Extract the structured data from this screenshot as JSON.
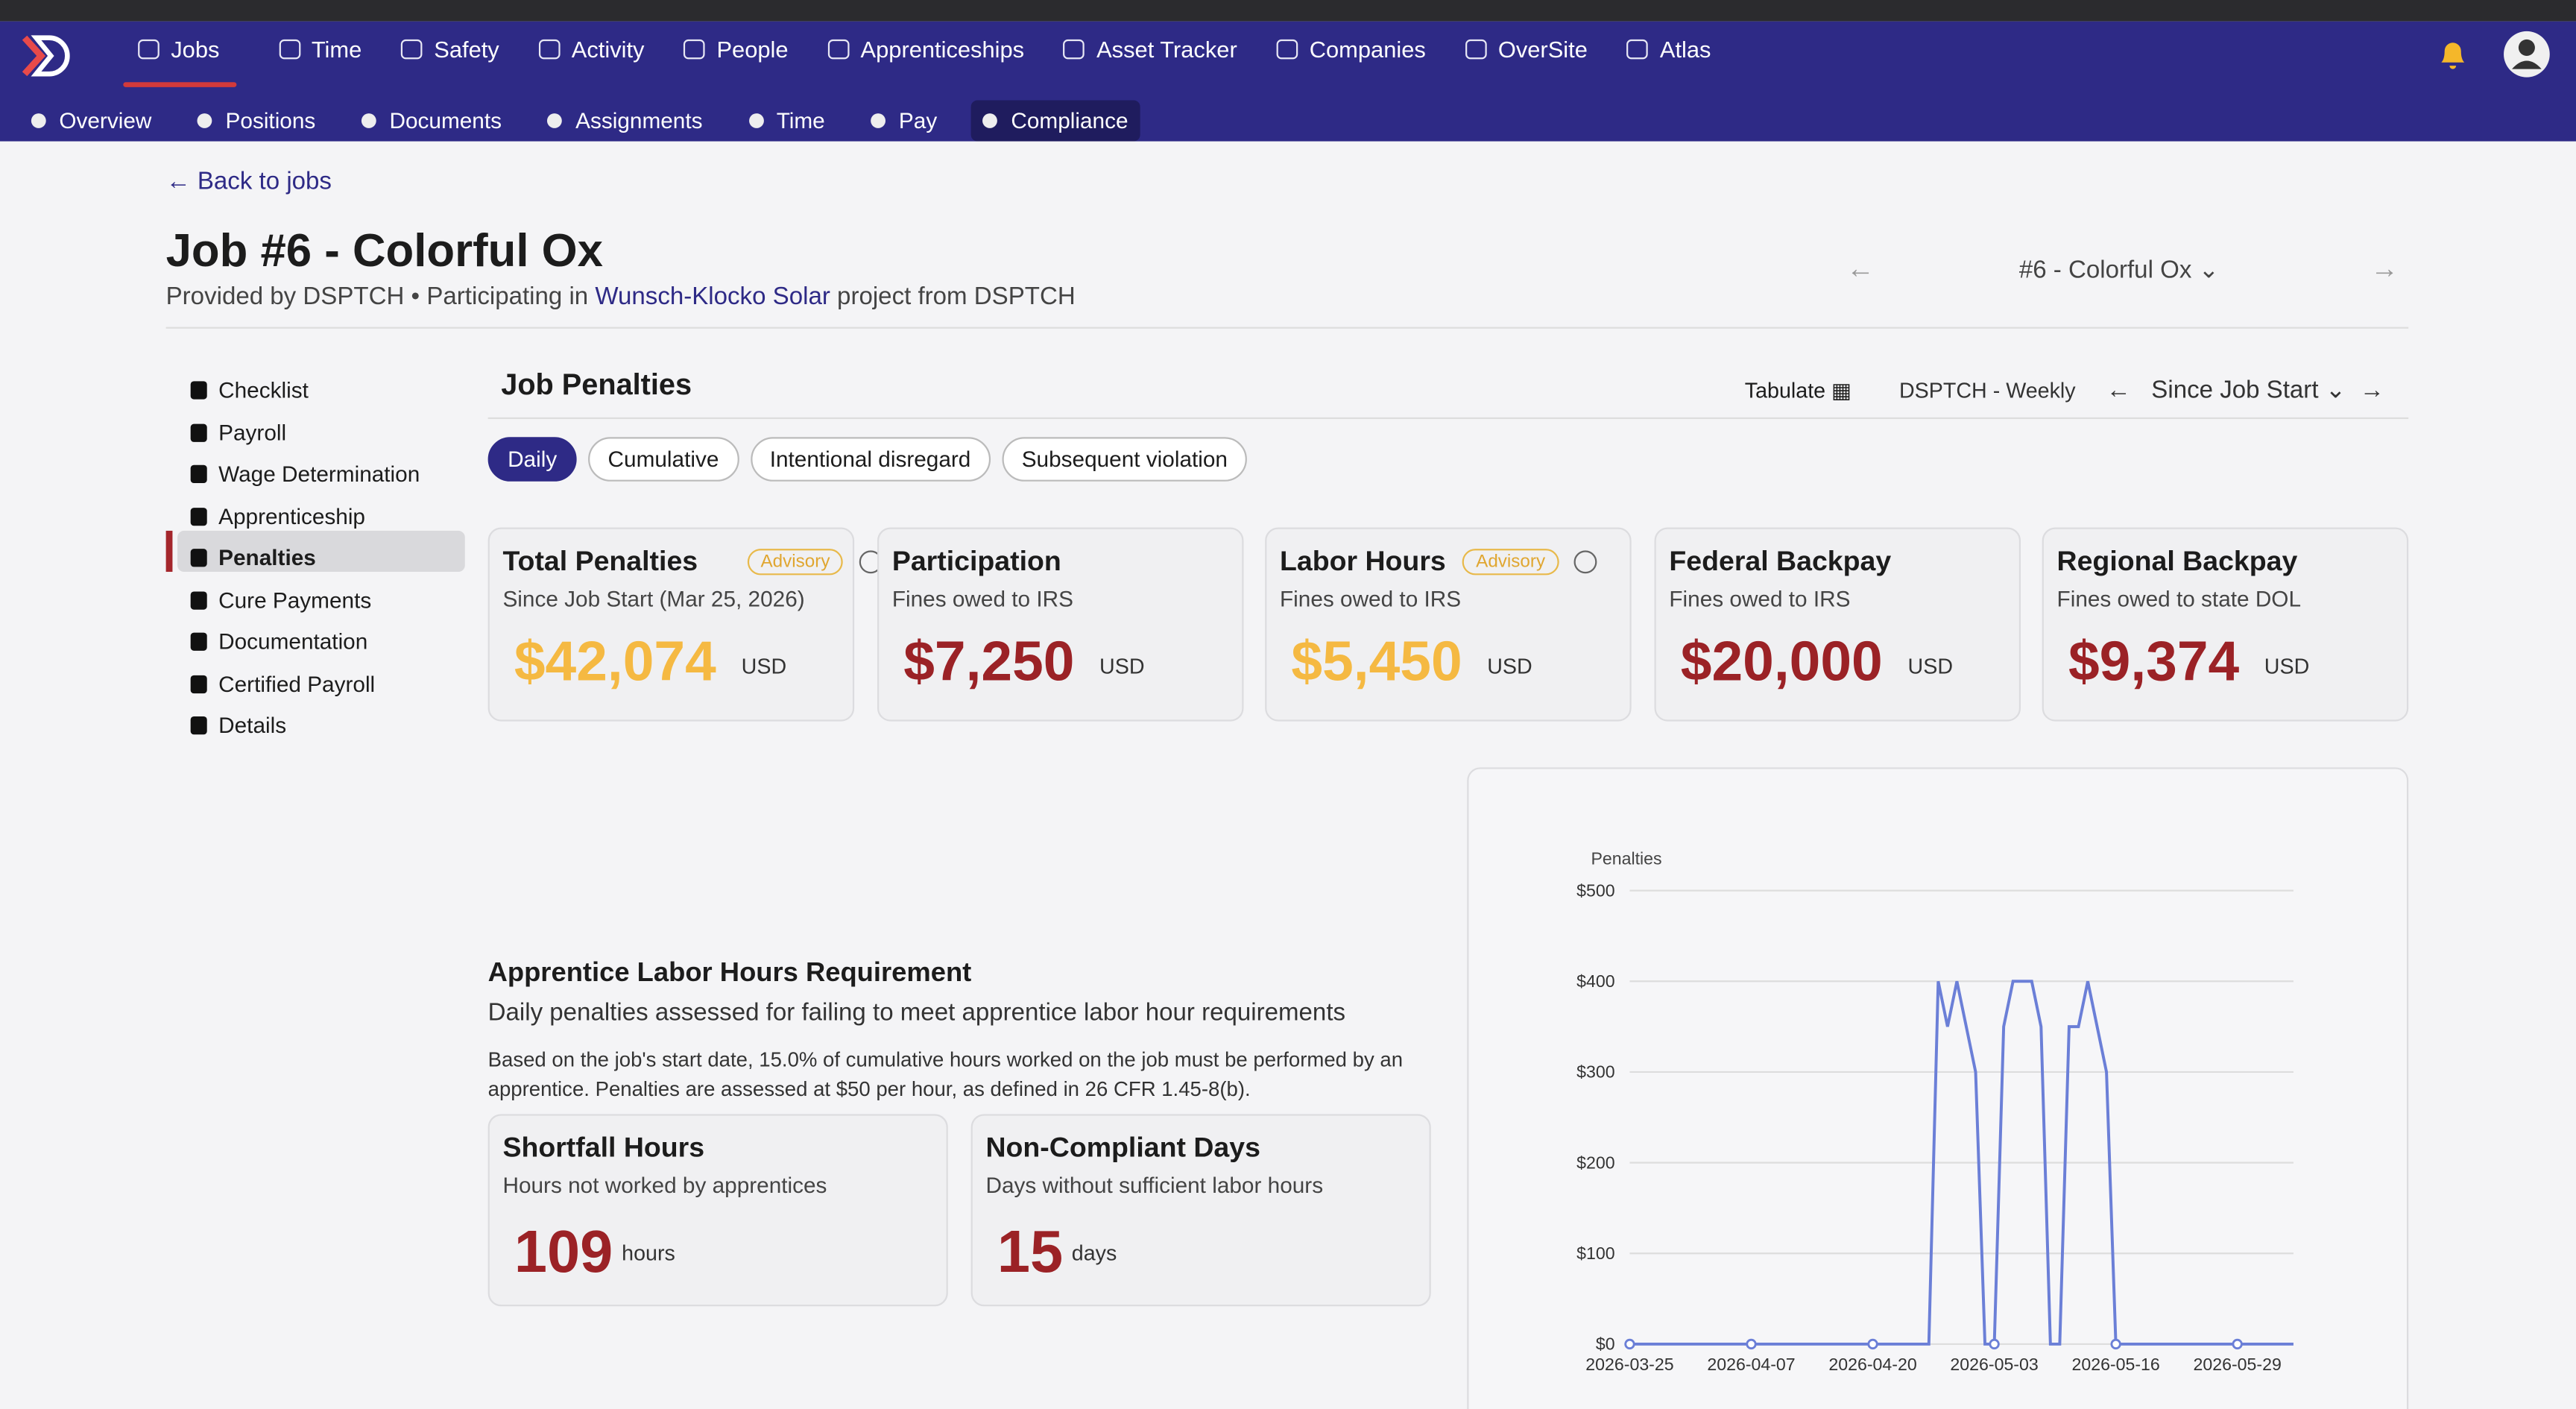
{
  "nav": {
    "items": [
      "Jobs",
      "Time",
      "Safety",
      "Activity",
      "People",
      "Apprenticeships",
      "Asset Tracker",
      "Companies",
      "OverSite",
      "Atlas"
    ]
  },
  "subnav": {
    "items": [
      "Overview",
      "Positions",
      "Documents",
      "Assignments",
      "Time",
      "Pay",
      "Compliance"
    ]
  },
  "header": {
    "back": "Back to jobs",
    "title": "Job #6 - Colorful Ox",
    "provided": "Provided by DSPTCH",
    "separator": "•",
    "participating": "Participating in",
    "project_link": "Wunsch-Klocko Solar",
    "project_from": "project from DSPTCH",
    "job_selector": "#6 - Colorful Ox"
  },
  "sidebar": {
    "items": [
      "Checklist",
      "Payroll",
      "Wage Determination",
      "Apprenticeship",
      "Penalties",
      "Cure Payments",
      "Documentation",
      "Certified Payroll",
      "Details"
    ]
  },
  "penalties": {
    "title": "Job Penalties",
    "tabulate": "Tabulate",
    "schedule": "DSPTCH - Weekly",
    "range": "Since Job Start",
    "tabs": [
      "Daily",
      "Cumulative",
      "Intentional disregard",
      "Subsequent violation"
    ],
    "cards": [
      {
        "title": "Total Penalties",
        "badge": "Advisory",
        "subtitle": "Since Job Start (Mar 25, 2026)",
        "value": "$42,074",
        "unit": "USD"
      },
      {
        "title": "Participation",
        "subtitle": "Fines owed to IRS",
        "value": "$7,250",
        "unit": "USD"
      },
      {
        "title": "Labor Hours",
        "badge": "Advisory",
        "subtitle": "Fines owed to IRS",
        "value": "$5,450",
        "unit": "USD"
      },
      {
        "title": "Federal Backpay",
        "subtitle": "Fines owed to IRS",
        "value": "$20,000",
        "unit": "USD"
      },
      {
        "title": "Regional Backpay",
        "subtitle": "Fines owed to state DOL",
        "value": "$9,374",
        "unit": "USD"
      }
    ]
  },
  "apprentice": {
    "title": "Apprentice Labor Hours Requirement",
    "subtitle": "Daily penalties assessed for failing to meet apprentice labor hour requirements",
    "description": "Based on the job's start date, 15.0% of cumulative hours worked on the job must be performed by an apprentice. Penalties are assessed at $50 per hour, as defined in 26 CFR 1.45-8(b).",
    "cards": [
      {
        "title": "Shortfall Hours",
        "subtitle": "Hours not worked by apprentices",
        "value": "109",
        "unit": "hours"
      },
      {
        "title": "Non-Compliant Days",
        "subtitle": "Days without sufficient labor hours",
        "value": "15",
        "unit": "days"
      }
    ]
  },
  "chart_data": {
    "type": "line",
    "y_label": "Penalties",
    "color": "#6b7fd7",
    "grid": true,
    "x": [
      "2026-03-25",
      "2026-04-07",
      "2026-04-20",
      "2026-04-26",
      "2026-04-27",
      "2026-04-28",
      "2026-04-29",
      "2026-05-01",
      "2026-05-02",
      "2026-05-03",
      "2026-05-04",
      "2026-05-05",
      "2026-05-07",
      "2026-05-08",
      "2026-05-09",
      "2026-05-10",
      "2026-05-11",
      "2026-05-12",
      "2026-05-13",
      "2026-05-15",
      "2026-05-16",
      "2026-05-29",
      "2026-06-04"
    ],
    "values": [
      0,
      0,
      0,
      0,
      400,
      350,
      400,
      300,
      0,
      0,
      350,
      400,
      400,
      350,
      0,
      0,
      350,
      350,
      400,
      300,
      0,
      0,
      0
    ],
    "xlim": [
      "2026-03-25",
      "2026-06-04"
    ],
    "xticks": [
      "2026-03-25",
      "2026-04-07",
      "2026-04-20",
      "2026-05-03",
      "2026-05-16",
      "2026-05-29"
    ],
    "ylim": [
      0,
      500
    ],
    "yticks": [
      {
        "value": 0,
        "label": "$0"
      },
      {
        "value": 100,
        "label": "$100"
      },
      {
        "value": 200,
        "label": "$200"
      },
      {
        "value": 300,
        "label": "$300"
      },
      {
        "value": 400,
        "label": "$400"
      },
      {
        "value": 500,
        "label": "$500"
      }
    ]
  }
}
